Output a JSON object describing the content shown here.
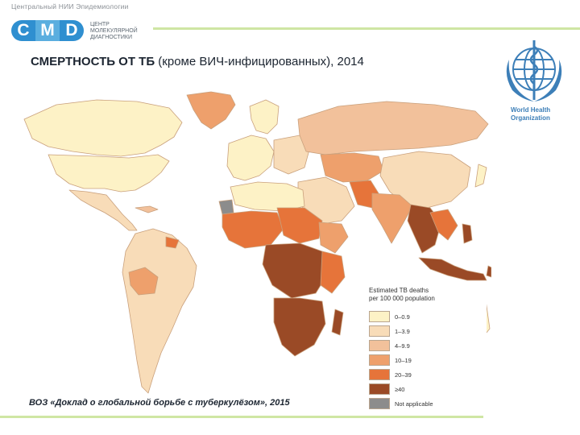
{
  "header": {
    "org_name": "Центральный НИИ Эпидемиологии",
    "logo_letters": [
      "C",
      "M",
      "D"
    ],
    "logo_subtitle": "ЦЕНТР МОЛЕКУЛЯРНОЙ ДИАГНОСТИКИ"
  },
  "title": {
    "bold": "СМЕРТНОСТЬ ОТ ТБ",
    "regular": " (кроме ВИЧ-инфицированных), 2014"
  },
  "who": {
    "line1": "World Health",
    "line2": "Organization"
  },
  "legend": {
    "title_line1": "Estimated TB deaths",
    "title_line2": "per 100 000 population",
    "items": [
      {
        "label": "0–0.9",
        "color": "#fdf2c6"
      },
      {
        "label": "1–3.9",
        "color": "#f8dcb8"
      },
      {
        "label": "4–9.9",
        "color": "#f2c19b"
      },
      {
        "label": "10–19",
        "color": "#eea06c"
      },
      {
        "label": "20–39",
        "color": "#e6743a"
      },
      {
        "label": "≥40",
        "color": "#9a4a26"
      },
      {
        "label": "Not applicable",
        "color": "#8c8c8c"
      }
    ]
  },
  "source": "ВОЗ «Доклад о глобальной борьбе с туберкулёзом», 2015",
  "colors": {
    "ocean": "#ffffff",
    "border": "#c9a07c",
    "accent_rule": "#cfe6a4"
  }
}
